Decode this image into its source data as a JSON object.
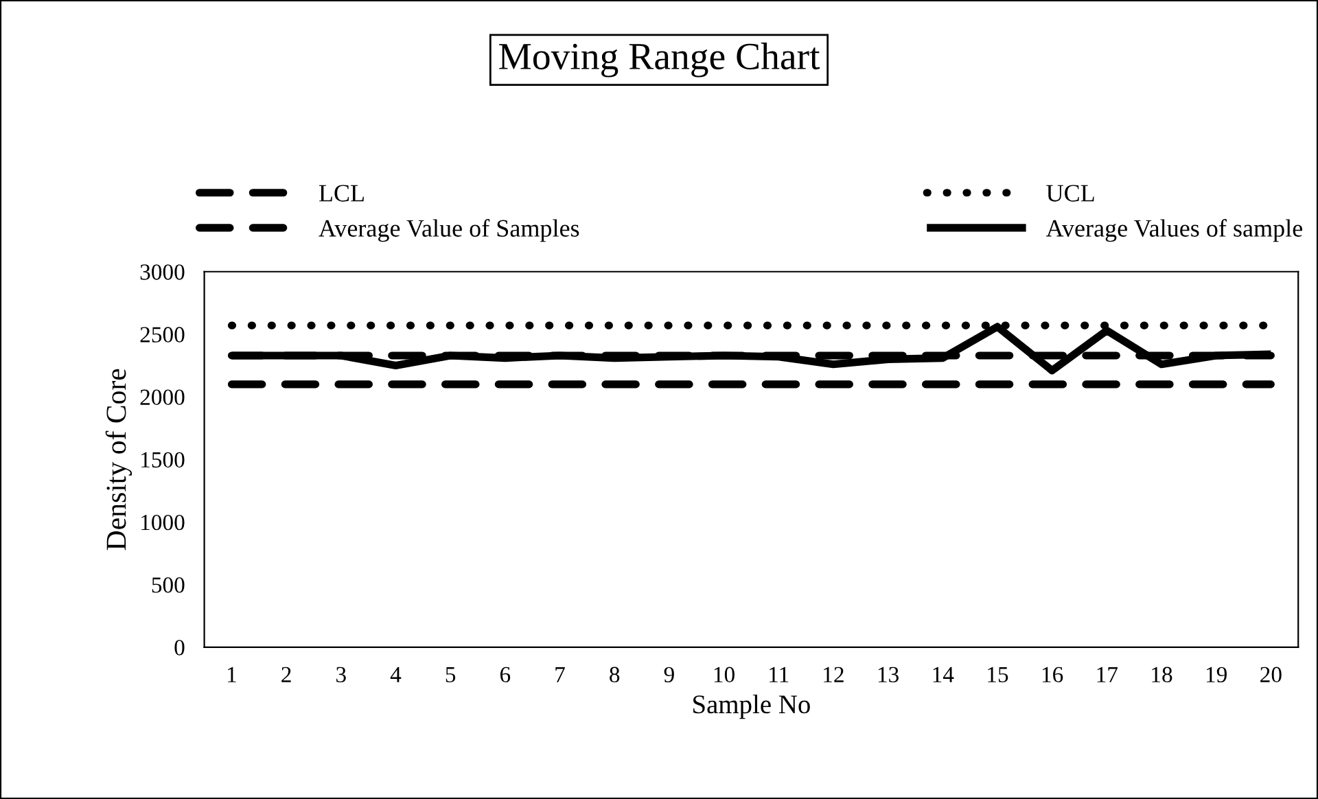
{
  "chart_data": {
    "type": "line",
    "title": "Moving Range Chart",
    "xlabel": "Sample No",
    "ylabel": "Density of Core",
    "categories": [
      "1",
      "2",
      "3",
      "4",
      "5",
      "6",
      "7",
      "8",
      "9",
      "10",
      "11",
      "12",
      "13",
      "14",
      "15",
      "16",
      "17",
      "18",
      "19",
      "20"
    ],
    "series": [
      {
        "name": "LCL",
        "color": "#000000",
        "line_style": "dashed",
        "values": [
          2100,
          2100,
          2100,
          2100,
          2100,
          2100,
          2100,
          2100,
          2100,
          2100,
          2100,
          2100,
          2100,
          2100,
          2100,
          2100,
          2100,
          2100,
          2100,
          2100
        ]
      },
      {
        "name": "Average Value of Samples",
        "color": "#000000",
        "line_style": "dashed",
        "values": [
          2330,
          2330,
          2330,
          2330,
          2330,
          2330,
          2330,
          2330,
          2330,
          2330,
          2330,
          2330,
          2330,
          2330,
          2330,
          2330,
          2330,
          2330,
          2330,
          2330
        ]
      },
      {
        "name": "UCL",
        "color": "#000000",
        "line_style": "dotted",
        "values": [
          2570,
          2570,
          2570,
          2570,
          2570,
          2570,
          2570,
          2570,
          2570,
          2570,
          2570,
          2570,
          2570,
          2570,
          2570,
          2570,
          2570,
          2570,
          2570,
          2570
        ]
      },
      {
        "name": "Average Values of sample",
        "color": "#000000",
        "line_style": "solid",
        "values": [
          2330,
          2330,
          2330,
          2250,
          2330,
          2310,
          2330,
          2310,
          2320,
          2330,
          2320,
          2260,
          2300,
          2310,
          2560,
          2210,
          2530,
          2260,
          2330,
          2340
        ]
      }
    ],
    "ylim": [
      0,
      3000
    ],
    "yticks": [
      0,
      500,
      1000,
      1500,
      2000,
      2500,
      3000
    ],
    "grid": false,
    "legend": "top",
    "marker": "none"
  }
}
